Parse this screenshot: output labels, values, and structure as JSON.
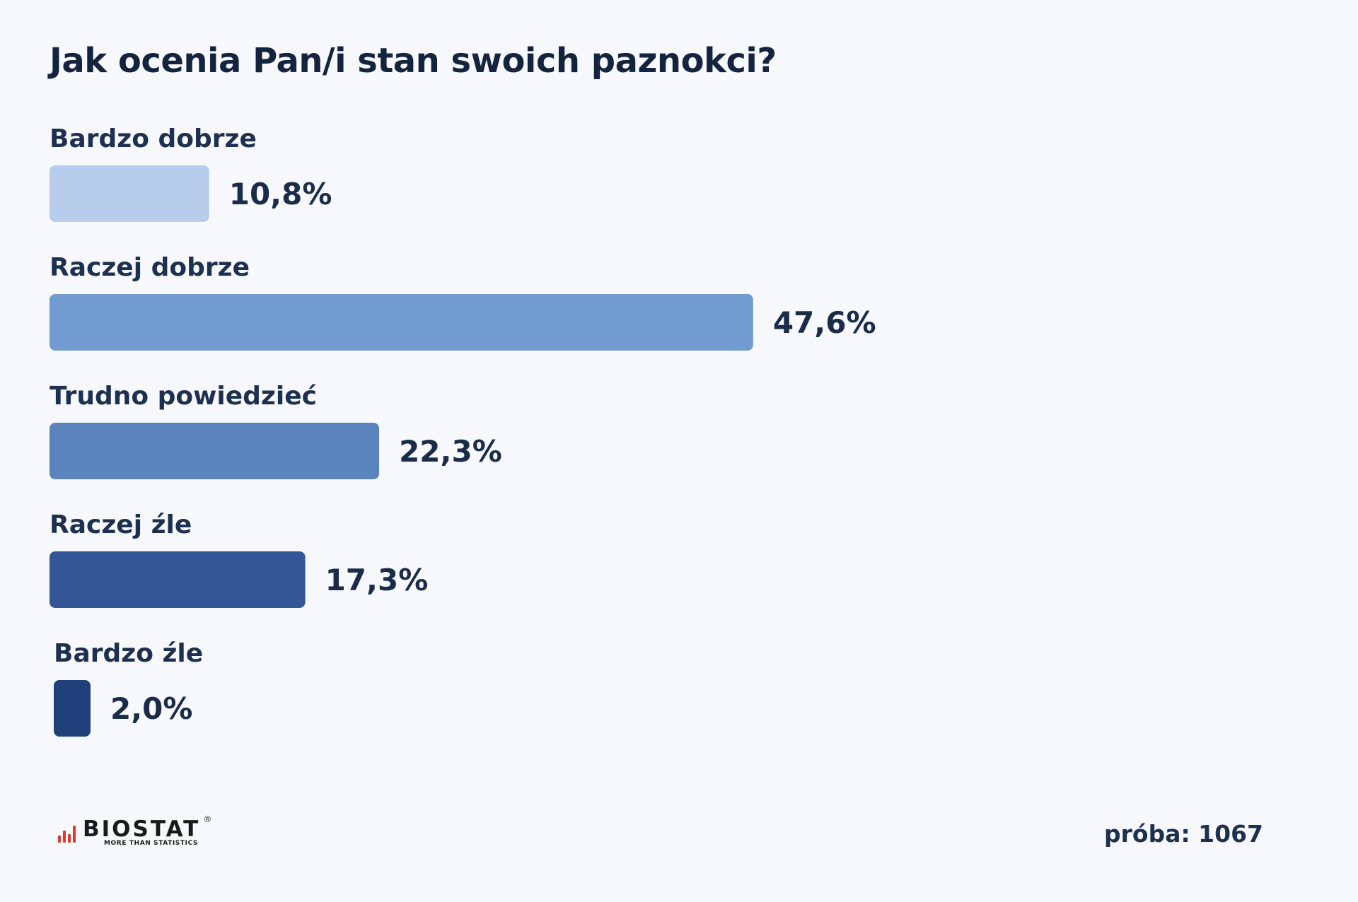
{
  "chart_data": {
    "type": "bar",
    "orientation": "horizontal",
    "title": "Jak ocenia Pan/i stan swoich paznokci?",
    "categories": [
      "Bardzo dobrze",
      "Raczej dobrze",
      "Trudno powiedzieć",
      "Raczej źle",
      "Bardzo źle"
    ],
    "values": [
      10.8,
      47.6,
      22.3,
      17.3,
      2.0
    ],
    "value_labels": [
      "10,8%",
      "47,6%",
      "22,3%",
      "17,3%",
      "2,0%"
    ],
    "colors": [
      "#b8cdeb",
      "#729bd2",
      "#5b84bf",
      "#355696",
      "#213f7a"
    ],
    "unit": "%",
    "xlim": [
      0,
      100
    ],
    "grid": false,
    "legend": "none"
  },
  "footer": {
    "logo_text": "BIOSTAT",
    "logo_tagline": "MORE THAN STATISTICS",
    "logo_mark": "®",
    "sample_label": "próba: 1067"
  }
}
